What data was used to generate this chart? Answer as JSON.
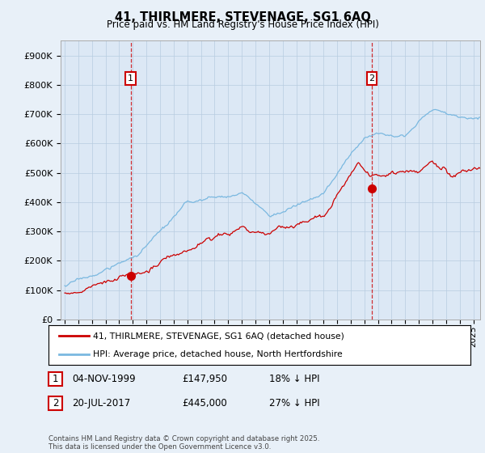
{
  "title": "41, THIRLMERE, STEVENAGE, SG1 6AQ",
  "subtitle": "Price paid vs. HM Land Registry's House Price Index (HPI)",
  "ylim": [
    0,
    950000
  ],
  "yticks": [
    0,
    100000,
    200000,
    300000,
    400000,
    500000,
    600000,
    700000,
    800000,
    900000
  ],
  "ytick_labels": [
    "£0",
    "£100K",
    "£200K",
    "£300K",
    "£400K",
    "£500K",
    "£600K",
    "£700K",
    "£800K",
    "£900K"
  ],
  "xlim_start": 1994.7,
  "xlim_end": 2025.5,
  "hpi_color": "#7ab8e0",
  "price_color": "#cc0000",
  "sale1_x": 1999.84,
  "sale1_y": 147950,
  "sale2_x": 2017.55,
  "sale2_y": 445000,
  "legend_price_label": "41, THIRLMERE, STEVENAGE, SG1 6AQ (detached house)",
  "legend_hpi_label": "HPI: Average price, detached house, North Hertfordshire",
  "table_row1": [
    "1",
    "04-NOV-1999",
    "£147,950",
    "18% ↓ HPI"
  ],
  "table_row2": [
    "2",
    "20-JUL-2017",
    "£445,000",
    "27% ↓ HPI"
  ],
  "footnote": "Contains HM Land Registry data © Crown copyright and database right 2025.\nThis data is licensed under the Open Government Licence v3.0.",
  "background_color": "#e8f0f8",
  "plot_bg_color": "#dce8f5",
  "grid_color": "#b8cce0"
}
